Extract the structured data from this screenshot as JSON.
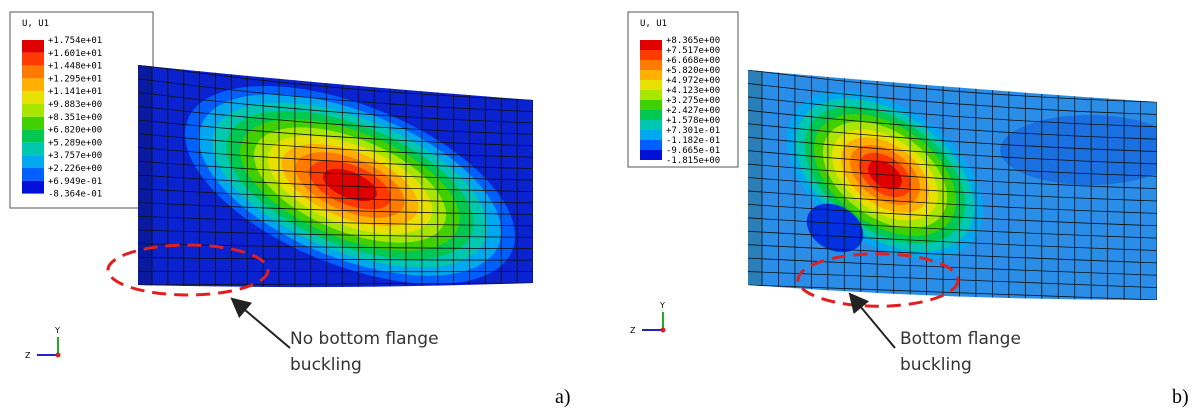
{
  "panels": [
    {
      "legend_title": "U, U1",
      "legend_values": [
        "+1.754e+01",
        "+1.601e+01",
        "+1.448e+01",
        "+1.295e+01",
        "+1.141e+01",
        "+9.883e+00",
        "+8.351e+00",
        "+6.820e+00",
        "+5.289e+00",
        "+3.757e+00",
        "+2.226e+00",
        "+6.949e-01",
        "-8.364e-01"
      ],
      "annotation": [
        "No bottom flange",
        "buckling"
      ],
      "label": "a)",
      "triad": {
        "y": "Y",
        "z": "Z"
      }
    },
    {
      "legend_title": "U, U1",
      "legend_values": [
        "+8.365e+00",
        "+7.517e+00",
        "+6.668e+00",
        "+5.820e+00",
        "+4.972e+00",
        "+4.123e+00",
        "+3.275e+00",
        "+2.427e+00",
        "+1.578e+00",
        "+7.301e-01",
        "-1.182e-01",
        "-9.665e-01",
        "-1.815e+00"
      ],
      "annotation": [
        "Bottom flange",
        "buckling"
      ],
      "label": "b)",
      "triad": {
        "y": "Y",
        "z": "Z"
      }
    }
  ]
}
